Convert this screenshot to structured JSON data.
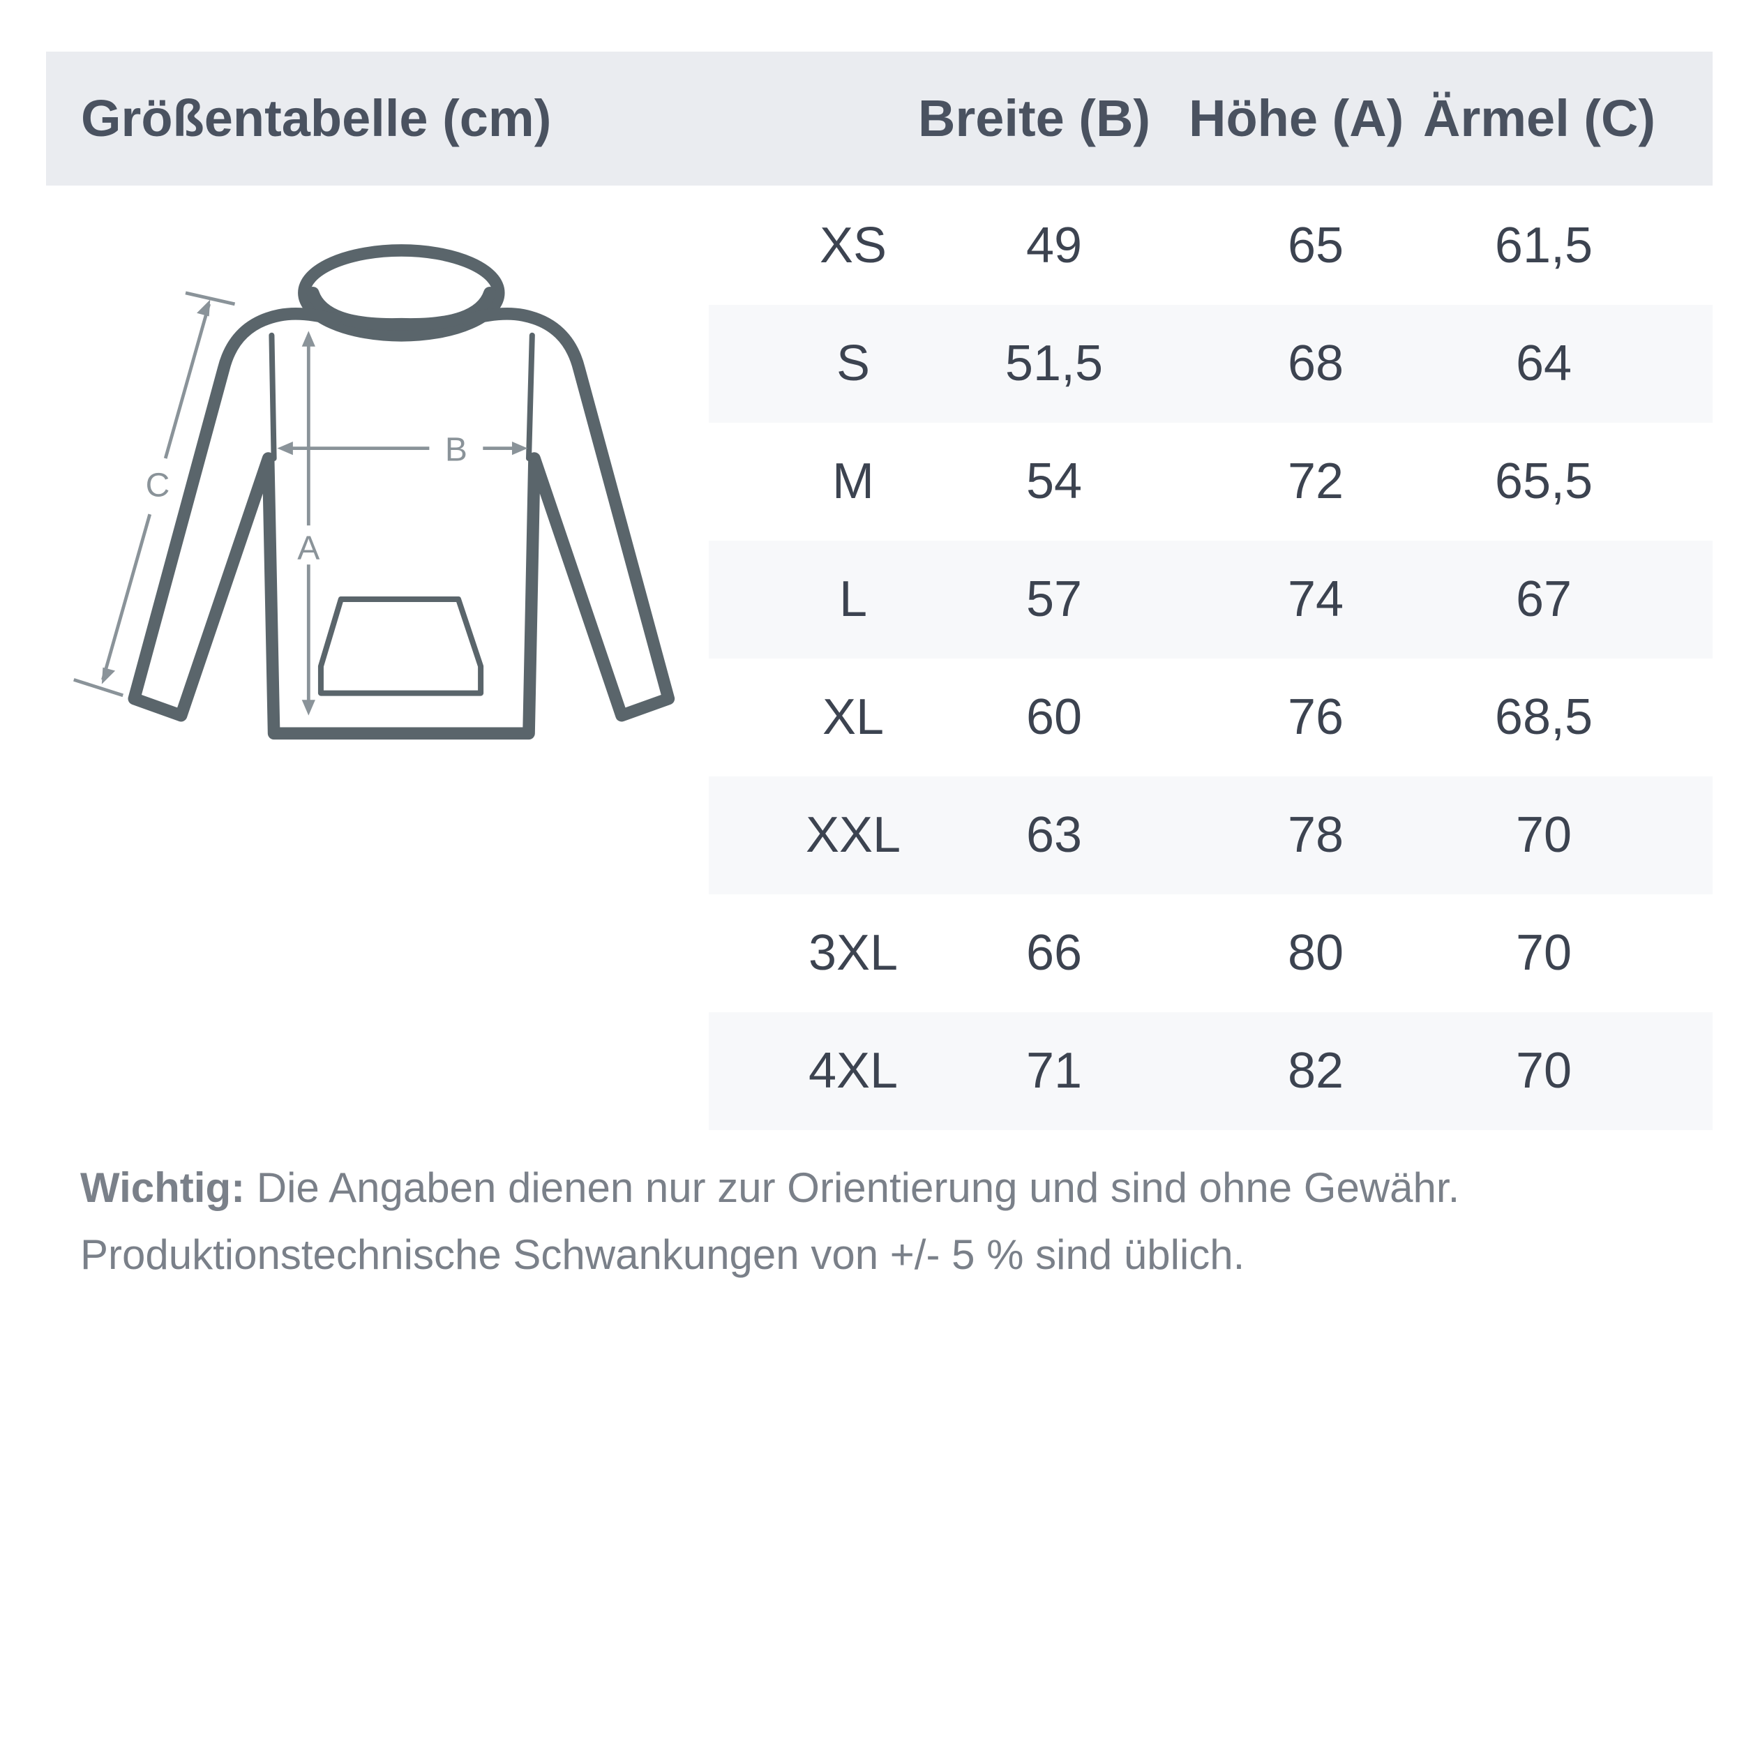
{
  "header": {
    "title": "Größentabelle (cm)",
    "columns": [
      "Breite (B)",
      "Höhe (A)",
      "Ärmel (C)"
    ]
  },
  "rows": [
    {
      "size": "XS",
      "breite": "49",
      "hoehe": "65",
      "aermel": "61,5"
    },
    {
      "size": "S",
      "breite": "51,5",
      "hoehe": "68",
      "aermel": "64"
    },
    {
      "size": "M",
      "breite": "54",
      "hoehe": "72",
      "aermel": "65,5"
    },
    {
      "size": "L",
      "breite": "57",
      "hoehe": "74",
      "aermel": "67"
    },
    {
      "size": "XL",
      "breite": "60",
      "hoehe": "76",
      "aermel": "68,5"
    },
    {
      "size": "XXL",
      "breite": "63",
      "hoehe": "78",
      "aermel": "70"
    },
    {
      "size": "3XL",
      "breite": "66",
      "hoehe": "80",
      "aermel": "70"
    },
    {
      "size": "4XL",
      "breite": "71",
      "hoehe": "82",
      "aermel": "70"
    }
  ],
  "diagram": {
    "label_a": "A",
    "label_b": "B",
    "label_c": "C"
  },
  "note": {
    "label": "Wichtig:",
    "line1": "Die Angaben dienen nur zur Orientierung und sind ohne Gewähr.",
    "line2": "Produktionstechnische Schwankungen von +/- 5 % sind üblich."
  },
  "colors": {
    "header_bg": "#eaecf0",
    "row_alt_bg": "#f7f8fa",
    "outline": "#5a656b",
    "text": "#3c4350"
  }
}
